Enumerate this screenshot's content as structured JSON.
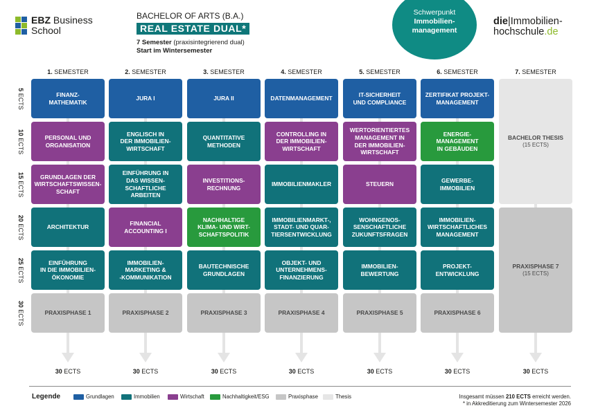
{
  "header": {
    "logo_ebz_line1": "EBZ",
    "logo_ebz_line1b": "Business",
    "logo_ebz_line2": "School",
    "program_title": "BACHELOR OF ARTS (B.A.)",
    "program_name": "REAL ESTATE DUAL*",
    "semester_count": "7 Semester",
    "semester_count_sub": "(praxisintegrierend dual)",
    "start": "Start im Wintersemester",
    "focus_label": "Schwerpunkt",
    "focus_value_1": "Immobilien-",
    "focus_value_2": "management",
    "logo_hh_1": "die",
    "logo_hh_2": "|Immobilien-",
    "logo_hh_3": "hochschule",
    "logo_hh_4": ".de"
  },
  "grid": {
    "semester_num": [
      "1.",
      "2.",
      "3.",
      "4.",
      "5.",
      "6.",
      "7."
    ],
    "semester_word": "SEMESTER",
    "row_ects_num": [
      "5",
      "10",
      "15",
      "20",
      "25",
      "30"
    ],
    "ects_word": "ECTS",
    "total_ects_num": "30",
    "modules": [
      [
        "FINANZ-\nMATHEMATIK",
        "PERSONAL UND\nORGANISATION",
        "GRUNDLAGEN DER\nWIRTSCHAFTSWISSEN-\nSCHAFT",
        "ARCHITEKTUR",
        "EINFÜHRUNG\nIN DIE IMMOBILIEN-\nÖKONOMIE",
        "PRAXISPHASE 1"
      ],
      [
        "JURA I",
        "ENGLISCH IN\nDER IMMOBILIEN-\nWIRTSCHAFT",
        "EINFÜHRUNG IN\nDAS WISSEN-\nSCHAFTLICHE\nARBEITEN",
        "FINANCIAL\nACCOUNTING I",
        "IMMOBILIEN-\nMARKETING &\n-KOMMUNIKATION",
        "PRAXISPHASE 2"
      ],
      [
        "JURA II",
        "QUANTITATIVE\nMETHODEN",
        "INVESTITIONS-\nRECHNUNG",
        "NACHHALTIGE\nKLIMA- UND WIRT-\nSCHAFTSPOLITIK",
        "BAUTECHNISCHE\nGRUNDLAGEN",
        "PRAXISPHASE 3"
      ],
      [
        "DATENMANAGEMENT",
        "CONTROLLING IN\nDER IMMOBILIEN-\nWIRTSCHAFT",
        "IMMOBILIENMAKLER",
        "IMMOBILIENMARKT-,\nSTADT- UND QUAR-\nTIERSENTWICKLUNG",
        "OBJEKT- UND\nUNTERNEHMENS-\nFINANZIERUNG",
        "PRAXISPHASE 4"
      ],
      [
        "IT-SICHERHEIT\nUND COMPLIANCE",
        "WERTORIENTIERTES\nMANAGEMENT IN\nDER IMMOBILIEN-\nWIRTSCHAFT",
        "STEUERN",
        "WOHNGENOS-\nSENSCHAFTLICHE\nZUKUNFTSFRAGEN",
        "IMMOBILIEN-\nBEWERTUNG",
        "PRAXISPHASE 5"
      ],
      [
        "ZERTIFIKAT PROJEKT-\nMANAGEMENT",
        "ENERGIE-\nMANAGEMENT\nIN GEBÄUDEN",
        "GEWERBE-\nIMMOBILIEN",
        "IMMOBILIEN-\nWIRTSCHAFTLICHES\nMANAGEMENT",
        "PROJEKT-\nENTWICKLUNG",
        "PRAXISPHASE 6"
      ]
    ],
    "module_categories": [
      [
        "blue",
        "purple",
        "purple",
        "teal",
        "teal",
        "grey"
      ],
      [
        "blue",
        "teal",
        "teal",
        "purple",
        "teal",
        "grey"
      ],
      [
        "blue",
        "teal",
        "purple",
        "green",
        "teal",
        "grey"
      ],
      [
        "blue",
        "purple",
        "teal",
        "teal",
        "teal",
        "grey"
      ],
      [
        "blue",
        "purple",
        "purple",
        "teal",
        "teal",
        "grey"
      ],
      [
        "blue",
        "green",
        "teal",
        "teal",
        "teal",
        "grey"
      ]
    ],
    "thesis_label": "BACHELOR THESIS",
    "thesis_sub": "(15 ECTS)",
    "praxis7_label": "PRAXISPHASE 7",
    "praxis7_sub": "(15 ECTS)"
  },
  "colors": {
    "blue": "#1f5fa3",
    "teal": "#11727a",
    "purple": "#8a3f8f",
    "green": "#289a3d",
    "grey": "#c6c6c6",
    "light": "#e6e6e6",
    "accent": "#0f8b84"
  },
  "legend": {
    "title": "Legende",
    "items": [
      {
        "label": "Grundlagen",
        "color": "#1f5fa3"
      },
      {
        "label": "Immobilien",
        "color": "#11727a"
      },
      {
        "label": "Wirtschaft",
        "color": "#8a3f8f"
      },
      {
        "label": "Nachhaltigkeit/ESG",
        "color": "#289a3d"
      },
      {
        "label": "Praxisphase",
        "color": "#c6c6c6"
      },
      {
        "label": "Thesis",
        "color": "#e6e6e6"
      }
    ]
  },
  "notes": {
    "line1_pre": "Insgesamt müssen",
    "line1_bold": "210 ECTS",
    "line1_post": "erreicht werden.",
    "line2": "* in Akkreditierung zum Wintersemester 2026"
  }
}
